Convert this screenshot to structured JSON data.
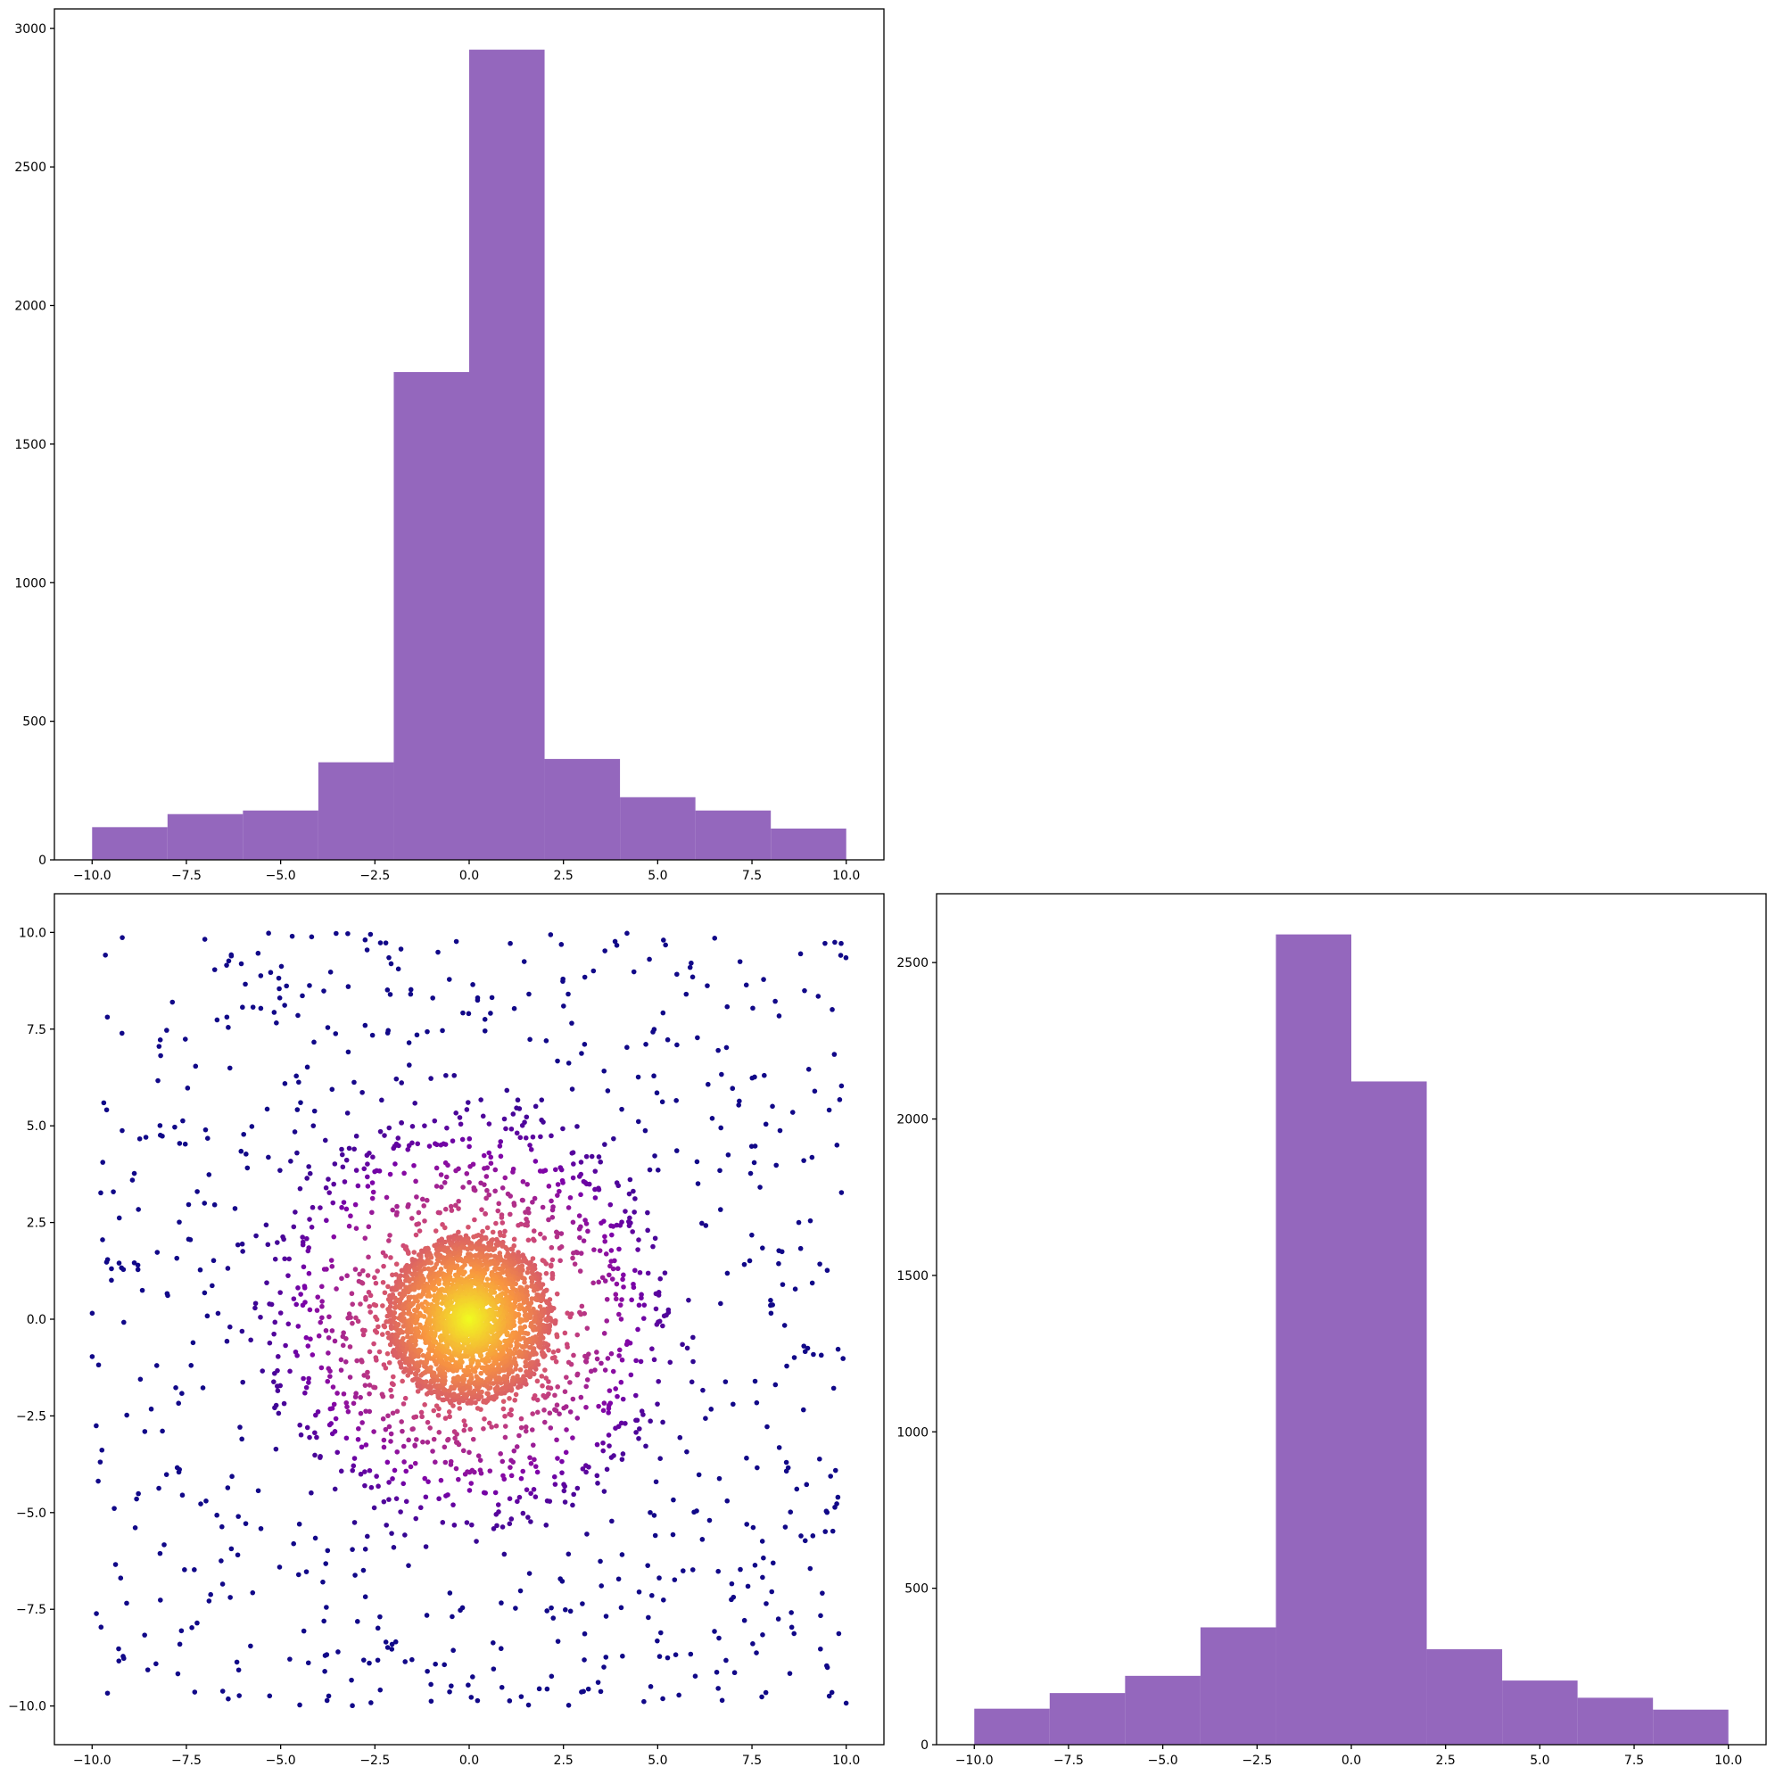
{
  "chart_data": [
    {
      "id": "top-histogram",
      "type": "bar",
      "bin_edges": [
        -10,
        -8,
        -6,
        -4,
        -2,
        0,
        2,
        4,
        6,
        8,
        10
      ],
      "values": [
        118,
        165,
        178,
        352,
        1760,
        2923,
        364,
        226,
        178,
        113
      ],
      "xlim": [
        -11,
        11
      ],
      "ylim": [
        0,
        3070
      ],
      "xticks": [
        -10,
        -7.5,
        -5,
        -2.5,
        0,
        2.5,
        5,
        7.5,
        10
      ],
      "xtick_labels": [
        "−10.0",
        "−7.5",
        "−5.0",
        "−2.5",
        "0.0",
        "2.5",
        "5.0",
        "7.5",
        "10.0"
      ],
      "yticks": [
        0,
        500,
        1000,
        1500,
        2000,
        2500,
        3000
      ],
      "ytick_labels": [
        "0",
        "500",
        "1000",
        "1500",
        "2000",
        "2500",
        "3000"
      ],
      "bar_color": "#9467bd",
      "grid": false,
      "title": "",
      "xlabel": "",
      "ylabel": ""
    },
    {
      "id": "scatter",
      "type": "scatter",
      "note_source": "point cloud: dense circular core at (0,0), ring to radius ~5, sparse uniform outskirts",
      "xlim": [
        -11,
        11
      ],
      "ylim": [
        -11,
        11
      ],
      "xticks": [
        -10,
        -7.5,
        -5,
        -2.5,
        0,
        2.5,
        5,
        7.5,
        10
      ],
      "xtick_labels": [
        "−10.0",
        "−7.5",
        "−5.0",
        "−2.5",
        "0.0",
        "2.5",
        "5.0",
        "7.5",
        "10.0"
      ],
      "yticks": [
        -10,
        -7.5,
        -5,
        -2.5,
        0,
        2.5,
        5,
        7.5,
        10
      ],
      "ytick_labels": [
        "−10.0",
        "−7.5",
        "−5.0",
        "−2.5",
        "0.0",
        "2.5",
        "5.0",
        "7.5",
        "10.0"
      ],
      "colormap": "plasma",
      "grid": false,
      "title": "",
      "xlabel": "",
      "ylabel": ""
    },
    {
      "id": "right-histogram",
      "type": "bar",
      "bin_edges": [
        -10,
        -8,
        -6,
        -4,
        -2,
        0,
        2,
        4,
        6,
        8,
        10
      ],
      "values": [
        115,
        165,
        220,
        375,
        2590,
        2120,
        305,
        205,
        150,
        112
      ],
      "xlim": [
        -11,
        11
      ],
      "ylim": [
        0,
        2720
      ],
      "xticks": [
        -10,
        -7.5,
        -5,
        -2.5,
        0,
        2.5,
        5,
        7.5,
        10
      ],
      "xtick_labels": [
        "−10.0",
        "−7.5",
        "−5.0",
        "−2.5",
        "0.0",
        "2.5",
        "5.0",
        "7.5",
        "10.0"
      ],
      "yticks": [
        0,
        500,
        1000,
        1500,
        2000,
        2500
      ],
      "ytick_labels": [
        "0",
        "500",
        "1000",
        "1500",
        "2000",
        "2500"
      ],
      "bar_color": "#9467bd",
      "grid": false,
      "title": "",
      "xlabel": "",
      "ylabel": ""
    }
  ]
}
